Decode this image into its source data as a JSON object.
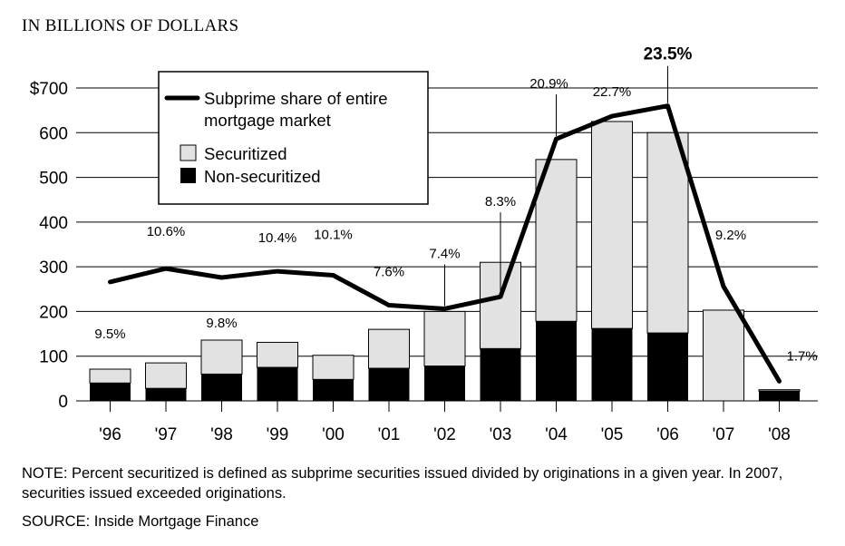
{
  "header": {
    "units_label": "IN BILLIONS OF DOLLARS"
  },
  "footer": {
    "note": "NOTE: Percent securitized is defined as subprime securities issued divided by originations in a given year. In 2007, securities issued exceeded originations.",
    "source": "SOURCE: Inside Mortgage Finance"
  },
  "colors": {
    "securitized": "#e2e2e2",
    "non_securitized": "#000000",
    "line": "#000000",
    "grid": "#000000"
  },
  "chart_data": {
    "type": "bar",
    "title": "",
    "xlabel": "",
    "ylabel": "",
    "categories": [
      "'96",
      "'97",
      "'98",
      "'99",
      "'00",
      "'01",
      "'02",
      "'03",
      "'04",
      "'05",
      "'06",
      "'07",
      "'08"
    ],
    "ylim": [
      0,
      700
    ],
    "yticks": [
      0,
      100,
      200,
      300,
      400,
      500,
      600,
      700
    ],
    "ytick_labels": [
      "0",
      "100",
      "200",
      "300",
      "400",
      "500",
      "600",
      "$700"
    ],
    "grid": true,
    "legend_position": "top-left",
    "stacked": true,
    "series": [
      {
        "name": "Non-securitized",
        "type": "bar",
        "values": [
          40,
          28,
          60,
          75,
          48,
          73,
          78,
          117,
          178,
          162,
          152,
          0,
          22
        ]
      },
      {
        "name": "Securitized",
        "type": "bar",
        "values": [
          31,
          57,
          76,
          56,
          54,
          87,
          122,
          193,
          362,
          463,
          448,
          203,
          3
        ]
      },
      {
        "name": "Subprime share of entire mortgage market",
        "type": "line",
        "values": [
          266,
          296,
          276,
          290,
          281,
          214,
          206,
          233,
          586,
          637,
          660,
          256,
          44
        ],
        "labels": [
          "9.5%",
          "10.6%",
          "9.8%",
          "10.4%",
          "10.1%",
          "7.6%",
          "7.4%",
          "8.3%",
          "20.9%",
          "22.7%",
          "23.5%",
          "9.2%",
          "1.7%"
        ]
      }
    ],
    "legend": {
      "line_label_line1": "Subprime share of entire",
      "line_label_line2": "mortgage market",
      "securitized_label": "Securitized",
      "non_securitized_label": "Non-securitized"
    }
  }
}
